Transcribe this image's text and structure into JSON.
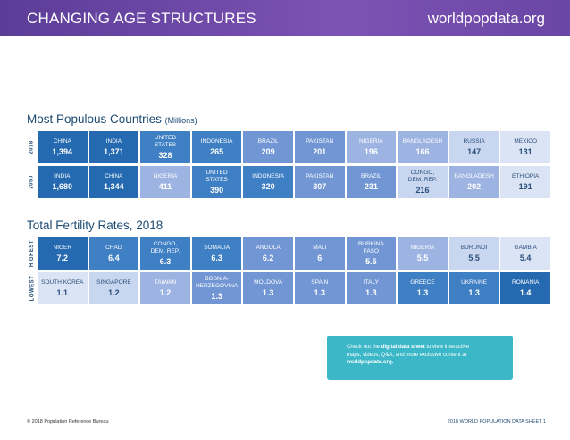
{
  "header": {
    "title": "CHANGING AGE STRUCTURES",
    "site": "worldpopdata.org"
  },
  "populous": {
    "title": "Most Populous Countries",
    "unit": "(Millions)",
    "rows": [
      {
        "label": "2018",
        "cells": [
          {
            "name": "CHINA",
            "value": "1,394",
            "shade": "s1"
          },
          {
            "name": "INDIA",
            "value": "1,371",
            "shade": "s1"
          },
          {
            "name": "UNITED\nSTATES",
            "value": "328",
            "shade": "s2"
          },
          {
            "name": "INDONESIA",
            "value": "265",
            "shade": "s2"
          },
          {
            "name": "BRAZIL",
            "value": "209",
            "shade": "s3"
          },
          {
            "name": "PAKISTAN",
            "value": "201",
            "shade": "s3"
          },
          {
            "name": "NIGERIA",
            "value": "196",
            "shade": "s4"
          },
          {
            "name": "BANGLADESH",
            "value": "166",
            "shade": "s4"
          },
          {
            "name": "RUSSIA",
            "value": "147",
            "shade": "s5",
            "dark": true
          },
          {
            "name": "MEXICO",
            "value": "131",
            "shade": "s6",
            "dark": true
          }
        ]
      },
      {
        "label": "2050",
        "cells": [
          {
            "name": "INDIA",
            "value": "1,680",
            "shade": "s1"
          },
          {
            "name": "CHINA",
            "value": "1,344",
            "shade": "s1"
          },
          {
            "name": "NIGERIA",
            "value": "411",
            "shade": "s4"
          },
          {
            "name": "UNITED\nSTATES",
            "value": "390",
            "shade": "s2"
          },
          {
            "name": "INDONESIA",
            "value": "320",
            "shade": "s2"
          },
          {
            "name": "PAKISTAN",
            "value": "307",
            "shade": "s3"
          },
          {
            "name": "BRAZIL",
            "value": "231",
            "shade": "s3"
          },
          {
            "name": "CONGO,\nDEM. REP.",
            "value": "216",
            "shade": "s5",
            "dark": true
          },
          {
            "name": "BANGLADESH",
            "value": "202",
            "shade": "s4"
          },
          {
            "name": "ETHIOPIA",
            "value": "191",
            "shade": "s6",
            "dark": true
          }
        ]
      }
    ]
  },
  "fertility": {
    "title": "Total Fertility Rates, 2018",
    "rows": [
      {
        "label": "HIGHEST",
        "cells": [
          {
            "name": "NIGER",
            "value": "7.2",
            "shade": "s1"
          },
          {
            "name": "CHAD",
            "value": "6.4",
            "shade": "s2"
          },
          {
            "name": "CONGO,\nDEM. REP.",
            "value": "6.3",
            "shade": "s2"
          },
          {
            "name": "SOMALIA",
            "value": "6.3",
            "shade": "s2"
          },
          {
            "name": "ANGOLA",
            "value": "6.2",
            "shade": "s3"
          },
          {
            "name": "MALI",
            "value": "6",
            "shade": "s3"
          },
          {
            "name": "BURKINA\nFASO",
            "value": "5.5",
            "shade": "s3"
          },
          {
            "name": "NIGERIA",
            "value": "5.5",
            "shade": "s4"
          },
          {
            "name": "BURUNDI",
            "value": "5.5",
            "shade": "s5",
            "dark": true
          },
          {
            "name": "GAMBIA",
            "value": "5.4",
            "shade": "s6",
            "dark": true
          }
        ]
      },
      {
        "label": "LOWEST",
        "cells": [
          {
            "name": "SOUTH KOREA",
            "value": "1.1",
            "shade": "s6",
            "dark": true
          },
          {
            "name": "SINGAPORE",
            "value": "1.2",
            "shade": "s5",
            "dark": true
          },
          {
            "name": "TAIWAN",
            "value": "1.2",
            "shade": "s4"
          },
          {
            "name": "BOSNIA-\nHERZEGOVINA",
            "value": "1.3",
            "shade": "s3"
          },
          {
            "name": "MOLDOVA",
            "value": "1.3",
            "shade": "s3"
          },
          {
            "name": "SPAIN",
            "value": "1.3",
            "shade": "s3"
          },
          {
            "name": "ITALY",
            "value": "1.3",
            "shade": "s3"
          },
          {
            "name": "GREECE",
            "value": "1.3",
            "shade": "s2"
          },
          {
            "name": "UKRAINE",
            "value": "1.3",
            "shade": "s2"
          },
          {
            "name": "ROMANIA",
            "value": "1.4",
            "shade": "s1"
          }
        ]
      }
    ]
  },
  "callout": {
    "line1_pre": "Check out the ",
    "line1_bold": "digital data sheet",
    "line1_post": " to view interactive",
    "line2": "maps, videos, Q&A, and more exclusive content at",
    "line3_bold": "worldpopdata.org."
  },
  "footer": {
    "left": "© 2018 Population Reference Bureau",
    "right": "2018 WORLD POPULATION DATA SHEET   1"
  },
  "colors": {
    "banner": "#6a46a5",
    "title_text": "#1d4b73",
    "shade_darkest": "#2569b0",
    "shade_lightest": "#dbe4f5",
    "callout": "#3cb7c7"
  }
}
